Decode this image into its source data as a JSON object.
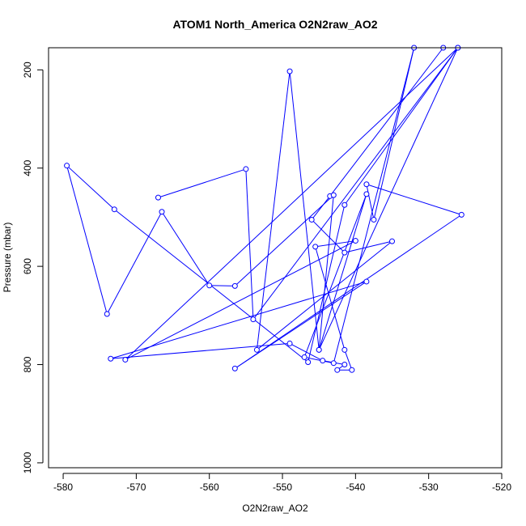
{
  "chart_data": {
    "type": "line",
    "title": "ATOM1 North_America O2N2raw_AO2",
    "xlabel": "O2N2raw_AO2",
    "ylabel": "Pressure (mbar)",
    "xlim": [
      -582,
      -520
    ],
    "ylim": [
      1010,
      155
    ],
    "y_inverted": true,
    "x_ticks": [
      -580,
      -570,
      -560,
      -550,
      -540,
      -530,
      -520
    ],
    "y_ticks": [
      200,
      400,
      600,
      800,
      1000
    ],
    "grid": false,
    "legend": "none",
    "line_color": "#0000ff",
    "marker": "open-circle",
    "series": [
      {
        "x": [
          -528.0,
          -543.5,
          -546.0,
          -541.5,
          -535.0,
          -553.5,
          -549.0,
          -545.0,
          -538.5,
          -547.0,
          -543.0,
          -532.0,
          -537.5,
          -538.5,
          -525.5,
          -556.5,
          -538.5,
          -573.5,
          -549.0,
          -544.5,
          -541.5,
          -542.5,
          -540.5,
          -541.5,
          -545.5,
          -540.0,
          -571.5,
          -526.0,
          -545.0,
          -543.0,
          -556.5,
          -560.0,
          -566.5,
          -574.0,
          -579.5,
          -573.0,
          -546.5,
          -541.5,
          -526.0,
          -554.0,
          -555.0,
          -567.0
        ],
        "y": [
          155,
          457,
          505,
          572,
          549,
          770,
          203,
          770,
          453,
          785,
          797,
          155,
          505,
          433,
          495,
          808,
          631,
          788,
          757,
          792,
          800,
          811,
          811,
          770,
          560,
          548,
          790,
          155,
          770,
          455,
          640,
          639,
          489,
          697,
          395,
          484,
          795,
          475,
          155,
          708,
          402,
          460
        ]
      }
    ]
  }
}
